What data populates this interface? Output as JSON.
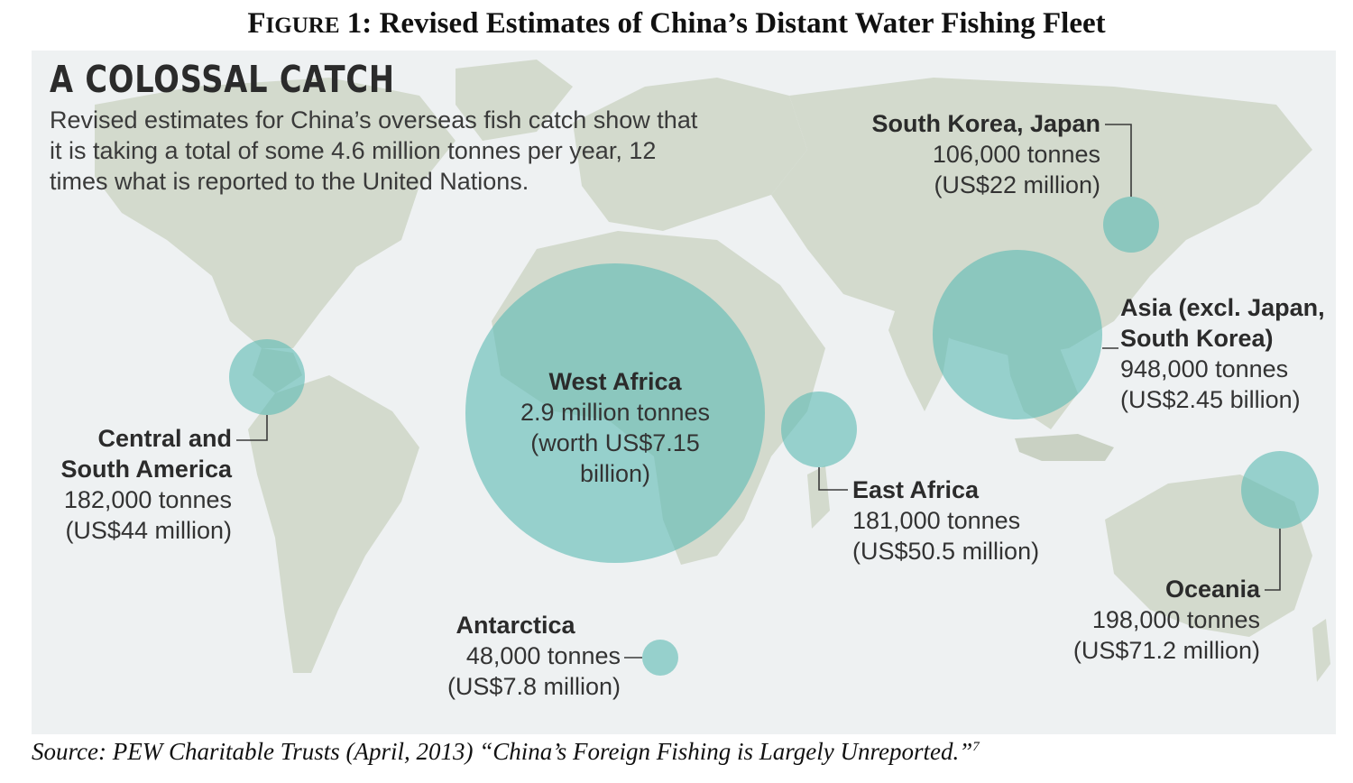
{
  "figure": {
    "title_lead": "F",
    "title_smallcaps": "IGURE",
    "title_rest": " 1: Revised Estimates of China’s Distant Water Fishing Fleet"
  },
  "graphic": {
    "headline": "A COLOSSAL CATCH",
    "intro": "Revised estimates for China’s overseas fish catch show that it is taking a total of some 4.6 million tonnes per year, 12 times what is reported to the United Nations."
  },
  "regions": [
    {
      "name": "West Africa",
      "lines": [
        "2.9 million tonnes",
        "(worth US$7.15",
        "billion)"
      ],
      "tonnes": 2900000
    },
    {
      "name_lines": [
        "Asia (excl. Japan,",
        "South Korea)"
      ],
      "lines": [
        "948,000 tonnes",
        "(US$2.45 billion)"
      ],
      "tonnes": 948000
    },
    {
      "name": "Oceania",
      "lines": [
        "198,000 tonnes",
        "(US$71.2 million)"
      ],
      "tonnes": 198000
    },
    {
      "name_lines": [
        "Central and",
        "South America"
      ],
      "lines": [
        "182,000 tonnes",
        "(US$44 million)"
      ],
      "tonnes": 182000
    },
    {
      "name": "East Africa",
      "lines": [
        "181,000 tonnes",
        "(US$50.5 million)"
      ],
      "tonnes": 181000
    },
    {
      "name": "South Korea, Japan",
      "lines": [
        "106,000 tonnes",
        "(US$22 million)"
      ],
      "tonnes": 106000
    },
    {
      "name": "Antarctica",
      "lines": [
        "48,000 tonnes",
        "(US$7.8 million)"
      ],
      "tonnes": 48000
    }
  ],
  "source": {
    "text": "Source: PEW Charitable Trusts (April, 2013) “China’s Foreign Fishing is Largely Unreported.”",
    "footnote": "7"
  },
  "colors": {
    "bubble": "#5fbbb5",
    "land": "#d3dacd",
    "ocean": "#eef1f2"
  }
}
